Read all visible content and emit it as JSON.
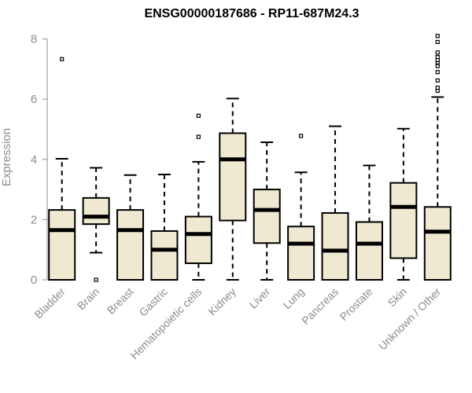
{
  "chart_data": {
    "type": "boxplot",
    "title": "ENSG00000187686 - RP11-687M24.3",
    "xlabel": "",
    "ylabel": "Expression",
    "ylim": [
      0,
      8.25
    ],
    "yticks": [
      0,
      2,
      4,
      6,
      8
    ],
    "grid": false,
    "legend": "none",
    "box_color": "#efe9d2",
    "line_color": "#000000",
    "axis_text_color": "#8c8c8c",
    "categories": [
      "Bladder",
      "Brain",
      "Breast",
      "Gastric",
      "Hematopoietic cells",
      "Kidney",
      "Liver",
      "Lung",
      "Pancreas",
      "Prostate",
      "Skin",
      "Unknown / Other"
    ],
    "boxes": [
      {
        "name": "Bladder",
        "whisker_low": 0,
        "q1": 0,
        "median": 1.65,
        "q3": 2.32,
        "whisker_high": 4.02,
        "outliers": [
          7.33
        ]
      },
      {
        "name": "Brain",
        "whisker_low": 0.9,
        "q1": 1.85,
        "median": 2.1,
        "q3": 2.72,
        "whisker_high": 3.72,
        "outliers": [
          0.0
        ]
      },
      {
        "name": "Breast",
        "whisker_low": 0,
        "q1": 0,
        "median": 1.65,
        "q3": 2.32,
        "whisker_high": 3.48,
        "outliers": []
      },
      {
        "name": "Gastric",
        "whisker_low": 0,
        "q1": 0,
        "median": 1.0,
        "q3": 1.62,
        "whisker_high": 3.5,
        "outliers": []
      },
      {
        "name": "Hematopoietic cells",
        "whisker_low": 0,
        "q1": 0.55,
        "median": 1.52,
        "q3": 2.1,
        "whisker_high": 3.92,
        "outliers": [
          4.75,
          5.45
        ]
      },
      {
        "name": "Kidney",
        "whisker_low": 0,
        "q1": 1.97,
        "median": 4.0,
        "q3": 4.87,
        "whisker_high": 6.02,
        "outliers": []
      },
      {
        "name": "Liver",
        "whisker_low": 0,
        "q1": 1.22,
        "median": 2.32,
        "q3": 3.0,
        "whisker_high": 4.57,
        "outliers": []
      },
      {
        "name": "Lung",
        "whisker_low": 0,
        "q1": 0,
        "median": 1.2,
        "q3": 1.77,
        "whisker_high": 3.57,
        "outliers": [
          4.78
        ]
      },
      {
        "name": "Pancreas",
        "whisker_low": 0,
        "q1": 0,
        "median": 0.97,
        "q3": 2.22,
        "whisker_high": 5.1,
        "outliers": []
      },
      {
        "name": "Prostate",
        "whisker_low": 0,
        "q1": 0,
        "median": 1.2,
        "q3": 1.92,
        "whisker_high": 3.8,
        "outliers": []
      },
      {
        "name": "Skin",
        "whisker_low": 0,
        "q1": 0.72,
        "median": 2.42,
        "q3": 3.22,
        "whisker_high": 5.02,
        "outliers": []
      },
      {
        "name": "Unknown / Other",
        "whisker_low": 0,
        "q1": 0,
        "median": 1.6,
        "q3": 2.42,
        "whisker_high": 6.07,
        "outliers": [
          6.28,
          6.38,
          6.62,
          6.9,
          7.1,
          7.22,
          7.3,
          7.4,
          7.55,
          7.9,
          8.1
        ]
      }
    ]
  }
}
